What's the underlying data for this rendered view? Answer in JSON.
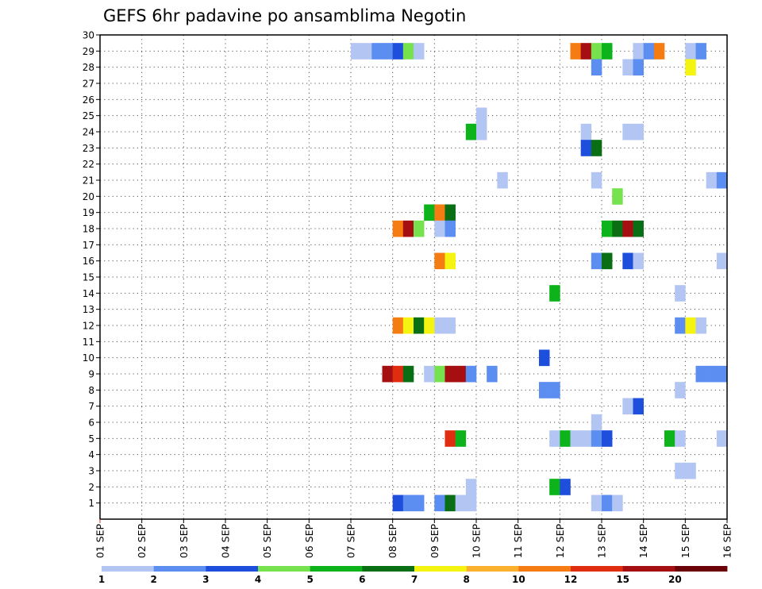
{
  "chart_data": {
    "type": "heatmap",
    "title": "GEFS 6hr padavine po ansamblima Negotin",
    "x_tick_labels": [
      "01 SEP",
      "02 SEP",
      "03 SEP",
      "04 SEP",
      "05 SEP",
      "06 SEP",
      "07 SEP",
      "08 SEP",
      "09 SEP",
      "10 SEP",
      "11 SEP",
      "12 SEP",
      "13 SEP",
      "14 SEP",
      "15 SEP",
      "16 SEP"
    ],
    "y_tick_labels": [
      "1",
      "2",
      "3",
      "4",
      "5",
      "6",
      "7",
      "8",
      "9",
      "10",
      "11",
      "12",
      "13",
      "14",
      "15",
      "16",
      "17",
      "18",
      "19",
      "20",
      "21",
      "22",
      "23",
      "24",
      "25",
      "26",
      "27",
      "28",
      "29",
      "30"
    ],
    "xlim_days": [
      1,
      16
    ],
    "ylim_members": [
      0,
      30
    ],
    "grid": "dotted",
    "time_step_hours": 6,
    "colorbar": {
      "position": "bottom",
      "labels": [
        "1",
        "2",
        "3",
        "4",
        "5",
        "6",
        "7",
        "8",
        "10",
        "12",
        "15",
        "20"
      ],
      "colors": [
        "#b3c6f3",
        "#5b8ef0",
        "#1d4fdc",
        "#76e24e",
        "#0db31a",
        "#0a6f14",
        "#f4f410",
        "#fbb02e",
        "#f57c12",
        "#e02d10",
        "#a50f12",
        "#6b0208"
      ]
    },
    "cells": [
      [
        29,
        7.0,
        1
      ],
      [
        29,
        7.25,
        1
      ],
      [
        29,
        7.5,
        2
      ],
      [
        29,
        7.75,
        2
      ],
      [
        29,
        8.0,
        3
      ],
      [
        29,
        8.25,
        4
      ],
      [
        29,
        8.5,
        1
      ],
      [
        29,
        12.25,
        9
      ],
      [
        29,
        12.5,
        11
      ],
      [
        29,
        12.75,
        4
      ],
      [
        29,
        13.0,
        5
      ],
      [
        29,
        13.75,
        1
      ],
      [
        29,
        14.0,
        2
      ],
      [
        29,
        14.25,
        9
      ],
      [
        29,
        15.0,
        1
      ],
      [
        29,
        15.25,
        2
      ],
      [
        28,
        12.75,
        2
      ],
      [
        28,
        13.5,
        1
      ],
      [
        28,
        13.75,
        2
      ],
      [
        28,
        15.0,
        7
      ],
      [
        25,
        10.0,
        1
      ],
      [
        24,
        9.75,
        5
      ],
      [
        24,
        10.0,
        1
      ],
      [
        24,
        12.5,
        1
      ],
      [
        24,
        13.5,
        1
      ],
      [
        24,
        13.75,
        1
      ],
      [
        23,
        12.5,
        3
      ],
      [
        23,
        12.75,
        6
      ],
      [
        21,
        10.5,
        1
      ],
      [
        21,
        12.75,
        1
      ],
      [
        21,
        15.5,
        1
      ],
      [
        21,
        15.75,
        2
      ],
      [
        20,
        13.25,
        4
      ],
      [
        19,
        8.75,
        5
      ],
      [
        19,
        9.0,
        9
      ],
      [
        19,
        9.25,
        6
      ],
      [
        18,
        8.0,
        9
      ],
      [
        18,
        8.25,
        11
      ],
      [
        18,
        8.5,
        4
      ],
      [
        18,
        9.0,
        1
      ],
      [
        18,
        9.25,
        2
      ],
      [
        18,
        13.0,
        5
      ],
      [
        18,
        13.25,
        6
      ],
      [
        18,
        13.5,
        11
      ],
      [
        18,
        13.75,
        6
      ],
      [
        16,
        9.0,
        9
      ],
      [
        16,
        9.25,
        7
      ],
      [
        16,
        12.75,
        2
      ],
      [
        16,
        13.0,
        6
      ],
      [
        16,
        13.5,
        3
      ],
      [
        16,
        13.75,
        1
      ],
      [
        16,
        15.75,
        1
      ],
      [
        14,
        11.75,
        5
      ],
      [
        14,
        14.75,
        1
      ],
      [
        12,
        8.0,
        9
      ],
      [
        12,
        8.25,
        7
      ],
      [
        12,
        8.5,
        6
      ],
      [
        12,
        8.75,
        7
      ],
      [
        12,
        9.0,
        1
      ],
      [
        12,
        9.25,
        1
      ],
      [
        12,
        14.75,
        2
      ],
      [
        12,
        15.0,
        7
      ],
      [
        12,
        15.25,
        1
      ],
      [
        10,
        11.5,
        3
      ],
      [
        9,
        7.75,
        11
      ],
      [
        9,
        8.0,
        10
      ],
      [
        9,
        8.25,
        6
      ],
      [
        9,
        8.75,
        1
      ],
      [
        9,
        9.0,
        4
      ],
      [
        9,
        9.25,
        11
      ],
      [
        9,
        9.5,
        11
      ],
      [
        9,
        9.75,
        2
      ],
      [
        9,
        10.25,
        2
      ],
      [
        9,
        15.25,
        2
      ],
      [
        9,
        15.5,
        2
      ],
      [
        9,
        15.75,
        2
      ],
      [
        8,
        11.5,
        2
      ],
      [
        8,
        11.75,
        2
      ],
      [
        8,
        14.75,
        1
      ],
      [
        7,
        13.5,
        1
      ],
      [
        7,
        13.75,
        3
      ],
      [
        6,
        12.75,
        1
      ],
      [
        5,
        9.25,
        10
      ],
      [
        5,
        9.5,
        5
      ],
      [
        5,
        11.75,
        1
      ],
      [
        5,
        12.0,
        5
      ],
      [
        5,
        12.25,
        1
      ],
      [
        5,
        12.5,
        1
      ],
      [
        5,
        12.75,
        2
      ],
      [
        5,
        13.0,
        3
      ],
      [
        5,
        14.5,
        5
      ],
      [
        5,
        14.75,
        1
      ],
      [
        5,
        15.75,
        1
      ],
      [
        3,
        14.75,
        1
      ],
      [
        3,
        15.0,
        1
      ],
      [
        2,
        9.75,
        1
      ],
      [
        2,
        11.75,
        5
      ],
      [
        2,
        12.0,
        3
      ],
      [
        1,
        8.0,
        3
      ],
      [
        1,
        8.25,
        2
      ],
      [
        1,
        8.5,
        2
      ],
      [
        1,
        9.0,
        2
      ],
      [
        1,
        9.25,
        6
      ],
      [
        1,
        9.5,
        1
      ],
      [
        1,
        9.75,
        1
      ],
      [
        1,
        12.75,
        1
      ],
      [
        1,
        13.0,
        2
      ],
      [
        1,
        13.25,
        1
      ]
    ]
  }
}
